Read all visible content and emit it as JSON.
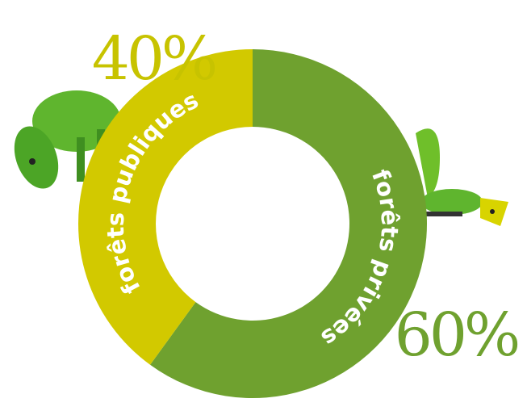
{
  "chart_data": {
    "type": "donut",
    "categories": [
      "forêts privées",
      "forêts publiques"
    ],
    "values": [
      60,
      40
    ],
    "value_labels": [
      "60%",
      "40%"
    ],
    "colors": [
      "#6fa12f",
      "#d2c900"
    ]
  }
}
